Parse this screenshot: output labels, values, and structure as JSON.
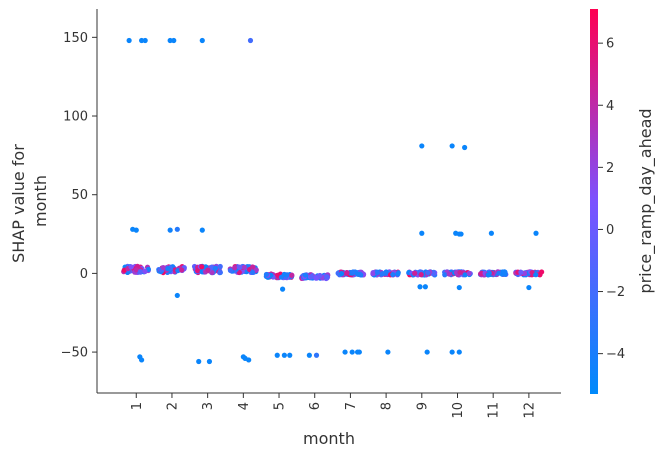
{
  "chart_data": {
    "type": "scatter",
    "title": "",
    "xlabel": "month",
    "ylabel_lines": [
      "SHAP value for",
      "month"
    ],
    "x_ticks": [
      1,
      2,
      3,
      4,
      5,
      6,
      7,
      8,
      9,
      10,
      11,
      12
    ],
    "y_ticks": [
      -50,
      0,
      50,
      100,
      150
    ],
    "xlim": [
      -0.1,
      12.9
    ],
    "ylim": [
      -76,
      168
    ],
    "grid": false,
    "colorbar": {
      "label": "price_ramp_day_ahead",
      "ticks": [
        -4,
        -2,
        0,
        2,
        4,
        6
      ],
      "range": [
        -5.3,
        7.1
      ],
      "color_low": "#008afb",
      "color_mid": "#7c52ff",
      "color_high": "#ff0052"
    },
    "dense_bands": [
      {
        "month": 1,
        "y_center": 2.5,
        "y_spread": 4,
        "low_fraction": 0.2
      },
      {
        "month": 2,
        "y_center": 2.5,
        "y_spread": 4,
        "low_fraction": 0.2
      },
      {
        "month": 3,
        "y_center": 2.5,
        "y_spread": 4,
        "low_fraction": 0.2
      },
      {
        "month": 4,
        "y_center": 2.5,
        "y_spread": 4,
        "low_fraction": 0.2
      },
      {
        "month": 5,
        "y_center": -1.5,
        "y_spread": 2.5,
        "low_fraction": 0.35
      },
      {
        "month": 6,
        "y_center": -2,
        "y_spread": 2.5,
        "low_fraction": 0.35
      },
      {
        "month": 7,
        "y_center": 0,
        "y_spread": 2,
        "low_fraction": 0.35
      },
      {
        "month": 8,
        "y_center": 0,
        "y_spread": 2,
        "low_fraction": 0.35
      },
      {
        "month": 9,
        "y_center": 0,
        "y_spread": 2,
        "low_fraction": 0.35
      },
      {
        "month": 10,
        "y_center": 0,
        "y_spread": 2,
        "low_fraction": 0.35
      },
      {
        "month": 11,
        "y_center": 0,
        "y_spread": 2,
        "low_fraction": 0.45
      },
      {
        "month": 12,
        "y_center": 0,
        "y_spread": 2,
        "low_fraction": 0.35
      }
    ],
    "outlier_points": [
      {
        "x": 0.8,
        "y": 148,
        "c": -4.8
      },
      {
        "x": 1.15,
        "y": 148,
        "c": -4.8
      },
      {
        "x": 1.25,
        "y": 148,
        "c": -4.8
      },
      {
        "x": 1.95,
        "y": 148,
        "c": -4.8
      },
      {
        "x": 2.05,
        "y": 148,
        "c": -4.8
      },
      {
        "x": 2.85,
        "y": 148,
        "c": -4.8
      },
      {
        "x": 4.2,
        "y": 148,
        "c": -2.0
      },
      {
        "x": 0.9,
        "y": 28,
        "c": -4.8
      },
      {
        "x": 1.0,
        "y": 27.5,
        "c": -4.8
      },
      {
        "x": 1.95,
        "y": 27.5,
        "c": -4.5
      },
      {
        "x": 2.15,
        "y": 28,
        "c": -3.5
      },
      {
        "x": 2.85,
        "y": 27.5,
        "c": -4.8
      },
      {
        "x": 2.15,
        "y": -14,
        "c": -4.8
      },
      {
        "x": 5.1,
        "y": -10,
        "c": -4.8
      },
      {
        "x": 9.0,
        "y": 81,
        "c": -4.8
      },
      {
        "x": 9.85,
        "y": 81,
        "c": -4.8
      },
      {
        "x": 10.2,
        "y": 80,
        "c": -4.8
      },
      {
        "x": 9.0,
        "y": 25.5,
        "c": -4.8
      },
      {
        "x": 9.95,
        "y": 25.5,
        "c": -4.8
      },
      {
        "x": 10.1,
        "y": 25,
        "c": -4.8
      },
      {
        "x": 10.05,
        "y": 25,
        "c": -4.8
      },
      {
        "x": 10.95,
        "y": 25.5,
        "c": -4.8
      },
      {
        "x": 12.2,
        "y": 25.5,
        "c": -4.8
      },
      {
        "x": 8.95,
        "y": -8.5,
        "c": -4.8
      },
      {
        "x": 9.1,
        "y": -8.5,
        "c": -4.8
      },
      {
        "x": 10.05,
        "y": -9,
        "c": -4.8
      },
      {
        "x": 12.0,
        "y": -9,
        "c": -4.8
      },
      {
        "x": 1.1,
        "y": -53,
        "c": -4.8
      },
      {
        "x": 1.15,
        "y": -55,
        "c": -4.8
      },
      {
        "x": 2.75,
        "y": -56,
        "c": -4.8
      },
      {
        "x": 3.05,
        "y": -56,
        "c": -4.8
      },
      {
        "x": 4.0,
        "y": -53,
        "c": -4.8
      },
      {
        "x": 4.05,
        "y": -54,
        "c": -4.8
      },
      {
        "x": 4.15,
        "y": -55,
        "c": -4.8
      },
      {
        "x": 4.95,
        "y": -52,
        "c": -4.8
      },
      {
        "x": 5.15,
        "y": -52,
        "c": -4.8
      },
      {
        "x": 5.3,
        "y": -52,
        "c": -4.8
      },
      {
        "x": 5.85,
        "y": -52,
        "c": -4.8
      },
      {
        "x": 6.05,
        "y": -52,
        "c": -3.0
      },
      {
        "x": 6.85,
        "y": -50,
        "c": -4.8
      },
      {
        "x": 7.05,
        "y": -50,
        "c": -4.8
      },
      {
        "x": 7.2,
        "y": -50,
        "c": -4.8
      },
      {
        "x": 7.25,
        "y": -50,
        "c": -4.8
      },
      {
        "x": 8.05,
        "y": -50,
        "c": -4.8
      },
      {
        "x": 9.15,
        "y": -50,
        "c": -4.8
      },
      {
        "x": 9.85,
        "y": -50,
        "c": -4.8
      },
      {
        "x": 10.05,
        "y": -50,
        "c": -4.8
      }
    ]
  }
}
